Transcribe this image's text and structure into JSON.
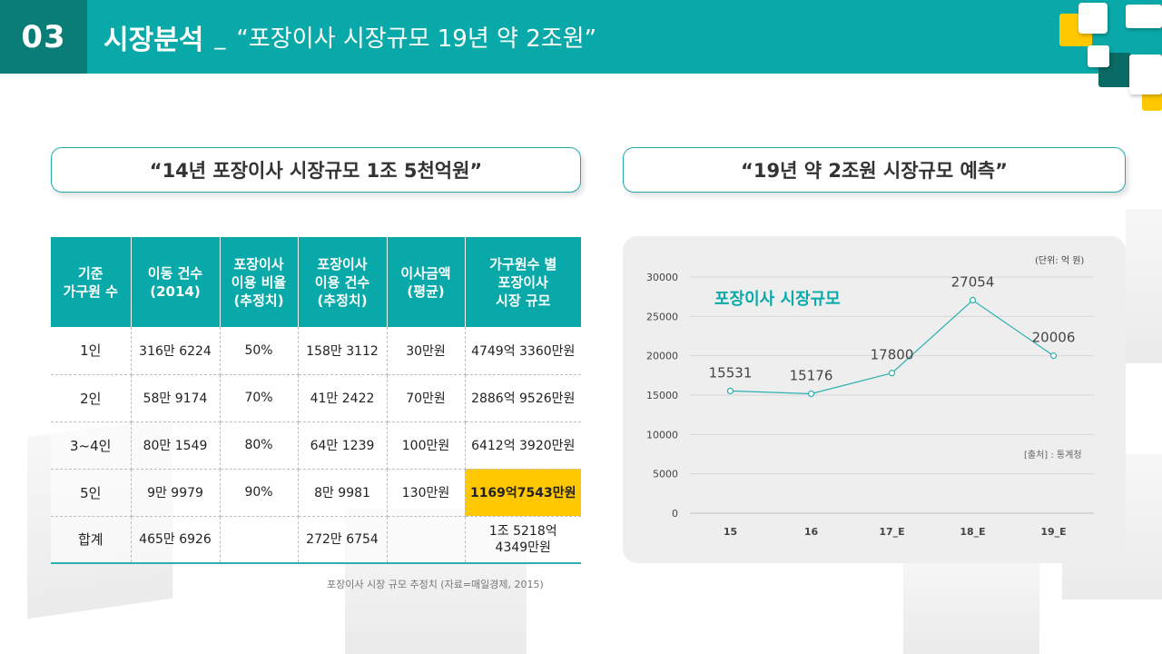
{
  "header": {
    "number": "03",
    "title": "시장분석",
    "separator": "_",
    "subtitle": "“포장이사 시장규모 19년 약 2조원”"
  },
  "left_section": {
    "heading": "“14년 포장이사 시장규모 1조 5천억원”",
    "table": {
      "headers": [
        "기준\n가구원 수",
        "이동 건수\n(2014)",
        "포장이사\n이용 비율\n(추정치)",
        "포장이사\n이용 건수\n(추정치)",
        "이사금액\n(평균)",
        "가구원수 별\n포장이사\n시장 규모"
      ],
      "rows": [
        [
          "1인",
          "316만 6224",
          "50%",
          "158만 3112",
          "30만원",
          "4749억 3360만원"
        ],
        [
          "2인",
          "58만 9174",
          "70%",
          "41만 2422",
          "70만원",
          "2886억 9526만원"
        ],
        [
          "3~4인",
          "80만 1549",
          "80%",
          "64만 1239",
          "100만원",
          "6412억 3920만원"
        ],
        [
          "5인",
          "9만 9979",
          "90%",
          "8만 9981",
          "130만원",
          "1169억7543만원"
        ],
        [
          "합계",
          "465만 6926",
          "",
          "272만 6754",
          "",
          "1조 5218억\n4349만원"
        ]
      ],
      "highlight_color": "#ffc800"
    },
    "source": "포장이사 시장 규모 추정치 (자료=매일경제, 2015)"
  },
  "right_section": {
    "heading": "“19년 약 2조원 시장규모 예측”",
    "unit": "(단위: 억 원)",
    "source": "[출처] : 통계청"
  },
  "chart_data": {
    "type": "line",
    "title": "",
    "xlabel": "",
    "ylabel": "",
    "categories": [
      "15",
      "16",
      "17_E",
      "18_E",
      "19_E"
    ],
    "series": [
      {
        "name": "포장이사 시장규모",
        "values": [
          15531,
          15176,
          17800,
          27054,
          20006
        ]
      }
    ],
    "ylim": [
      0,
      30000
    ],
    "yticks": [
      0,
      5000,
      10000,
      15000,
      20000,
      25000,
      30000
    ],
    "grid": true,
    "line_color": "#2bb0ae"
  },
  "colors": {
    "accent": "#0aa9a9",
    "accent_dark": "#0a7d77",
    "highlight": "#ffc800"
  }
}
